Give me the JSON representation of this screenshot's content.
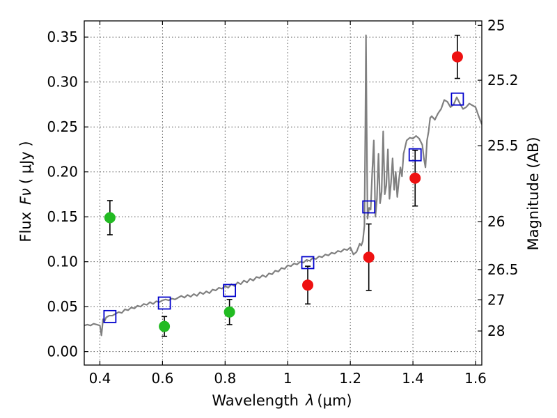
{
  "chart_data": {
    "type": "scatter",
    "title": "",
    "xlabel": "Wavelength",
    "xlabel_symbol": "λ",
    "xlabel_unit": "(μm)",
    "ylabel": "Flux",
    "ylabel_symbol": "Fν",
    "ylabel_unit": "( μJy )",
    "ylabel_right": "Magnitude (AB)",
    "xlim": [
      0.35,
      1.62
    ],
    "ylim": [
      -0.015,
      0.368
    ],
    "grid": true,
    "x_ticks": [
      {
        "value": 0.4,
        "label": "0.4"
      },
      {
        "value": 0.6,
        "label": "0.6"
      },
      {
        "value": 0.8,
        "label": "0.8"
      },
      {
        "value": 1.0,
        "label": "1"
      },
      {
        "value": 1.2,
        "label": "1.2"
      },
      {
        "value": 1.4,
        "label": "1.4"
      },
      {
        "value": 1.6,
        "label": "1.6"
      }
    ],
    "y_ticks": [
      {
        "value": 0.0,
        "label": "0.00"
      },
      {
        "value": 0.05,
        "label": "0.05"
      },
      {
        "value": 0.1,
        "label": "0.10"
      },
      {
        "value": 0.15,
        "label": "0.15"
      },
      {
        "value": 0.2,
        "label": "0.20"
      },
      {
        "value": 0.25,
        "label": "0.25"
      },
      {
        "value": 0.3,
        "label": "0.30"
      },
      {
        "value": 0.35,
        "label": "0.35"
      }
    ],
    "right_ticks": [
      {
        "mag": 25,
        "label": "25"
      },
      {
        "mag": 25.2,
        "label": "25.2"
      },
      {
        "mag": 25.5,
        "label": "25.5"
      },
      {
        "mag": 26,
        "label": "26"
      },
      {
        "mag": 26.5,
        "label": "26.5"
      },
      {
        "mag": 27,
        "label": "27"
      },
      {
        "mag": 28,
        "label": "28"
      }
    ],
    "series": [
      {
        "kind": "line",
        "color": "#808080",
        "x": [
          0.35,
          0.36,
          0.37,
          0.38,
          0.39,
          0.4,
          0.405,
          0.41,
          0.415,
          0.42,
          0.43,
          0.44,
          0.45,
          0.46,
          0.47,
          0.48,
          0.49,
          0.5,
          0.51,
          0.52,
          0.53,
          0.54,
          0.55,
          0.56,
          0.57,
          0.58,
          0.59,
          0.6,
          0.61,
          0.62,
          0.63,
          0.64,
          0.65,
          0.66,
          0.67,
          0.68,
          0.69,
          0.7,
          0.71,
          0.72,
          0.73,
          0.74,
          0.75,
          0.76,
          0.77,
          0.78,
          0.79,
          0.8,
          0.81,
          0.82,
          0.83,
          0.84,
          0.85,
          0.86,
          0.87,
          0.88,
          0.89,
          0.9,
          0.91,
          0.92,
          0.93,
          0.94,
          0.95,
          0.96,
          0.97,
          0.98,
          0.99,
          1.0,
          1.01,
          1.02,
          1.03,
          1.04,
          1.05,
          1.06,
          1.07,
          1.08,
          1.09,
          1.1,
          1.11,
          1.12,
          1.13,
          1.14,
          1.15,
          1.16,
          1.17,
          1.18,
          1.19,
          1.2,
          1.21,
          1.22,
          1.23,
          1.235,
          1.24,
          1.245,
          1.248,
          1.25,
          1.252,
          1.255,
          1.26,
          1.265,
          1.27,
          1.275,
          1.28,
          1.285,
          1.29,
          1.295,
          1.3,
          1.305,
          1.31,
          1.315,
          1.32,
          1.325,
          1.33,
          1.335,
          1.34,
          1.345,
          1.35,
          1.355,
          1.36,
          1.365,
          1.37,
          1.38,
          1.39,
          1.4,
          1.41,
          1.42,
          1.43,
          1.435,
          1.44,
          1.445,
          1.45,
          1.455,
          1.46,
          1.47,
          1.48,
          1.49,
          1.5,
          1.51,
          1.52,
          1.53,
          1.54,
          1.55,
          1.56,
          1.57,
          1.58,
          1.59,
          1.6,
          1.61,
          1.62
        ],
        "y": [
          0.029,
          0.03,
          0.029,
          0.031,
          0.03,
          0.029,
          0.018,
          0.036,
          0.034,
          0.038,
          0.04,
          0.04,
          0.042,
          0.044,
          0.043,
          0.047,
          0.046,
          0.049,
          0.048,
          0.051,
          0.05,
          0.053,
          0.052,
          0.055,
          0.053,
          0.056,
          0.055,
          0.057,
          0.058,
          0.057,
          0.059,
          0.058,
          0.06,
          0.062,
          0.06,
          0.063,
          0.061,
          0.064,
          0.062,
          0.066,
          0.064,
          0.067,
          0.065,
          0.069,
          0.068,
          0.071,
          0.07,
          0.073,
          0.071,
          0.075,
          0.073,
          0.077,
          0.075,
          0.079,
          0.077,
          0.081,
          0.079,
          0.083,
          0.082,
          0.085,
          0.083,
          0.087,
          0.086,
          0.09,
          0.089,
          0.093,
          0.092,
          0.096,
          0.095,
          0.098,
          0.097,
          0.1,
          0.099,
          0.102,
          0.101,
          0.104,
          0.103,
          0.106,
          0.105,
          0.108,
          0.107,
          0.11,
          0.109,
          0.112,
          0.111,
          0.114,
          0.113,
          0.116,
          0.108,
          0.111,
          0.12,
          0.118,
          0.123,
          0.14,
          0.25,
          0.352,
          0.26,
          0.148,
          0.16,
          0.158,
          0.2,
          0.235,
          0.15,
          0.17,
          0.22,
          0.165,
          0.178,
          0.245,
          0.175,
          0.185,
          0.225,
          0.17,
          0.188,
          0.215,
          0.18,
          0.2,
          0.172,
          0.19,
          0.205,
          0.195,
          0.22,
          0.235,
          0.238,
          0.237,
          0.24,
          0.237,
          0.23,
          0.215,
          0.205,
          0.235,
          0.245,
          0.26,
          0.262,
          0.258,
          0.265,
          0.27,
          0.28,
          0.278,
          0.272,
          0.275,
          0.283,
          0.276,
          0.27,
          0.272,
          0.276,
          0.274,
          0.272,
          0.262,
          0.253
        ]
      },
      {
        "kind": "markers",
        "marker": "circle",
        "color": "#22bb22",
        "points": [
          {
            "x": 0.432,
            "y": 0.149,
            "err": 0.019
          },
          {
            "x": 0.606,
            "y": 0.028,
            "err": 0.011
          },
          {
            "x": 0.814,
            "y": 0.044,
            "err": 0.014
          }
        ]
      },
      {
        "kind": "markers",
        "marker": "circle",
        "color": "#ee1111",
        "points": [
          {
            "x": 1.064,
            "y": 0.074,
            "err": 0.021
          },
          {
            "x": 1.259,
            "y": 0.105,
            "err": 0.037
          },
          {
            "x": 1.407,
            "y": 0.193,
            "err": 0.031
          },
          {
            "x": 1.542,
            "y": 0.328,
            "err": 0.024
          }
        ]
      },
      {
        "kind": "markers",
        "marker": "open-square",
        "color": "#0000cc",
        "points": [
          {
            "x": 0.432,
            "y": 0.039
          },
          {
            "x": 0.606,
            "y": 0.054
          },
          {
            "x": 0.814,
            "y": 0.068
          },
          {
            "x": 1.064,
            "y": 0.099
          },
          {
            "x": 1.259,
            "y": 0.161
          },
          {
            "x": 1.407,
            "y": 0.219
          },
          {
            "x": 1.542,
            "y": 0.281
          }
        ]
      }
    ]
  }
}
